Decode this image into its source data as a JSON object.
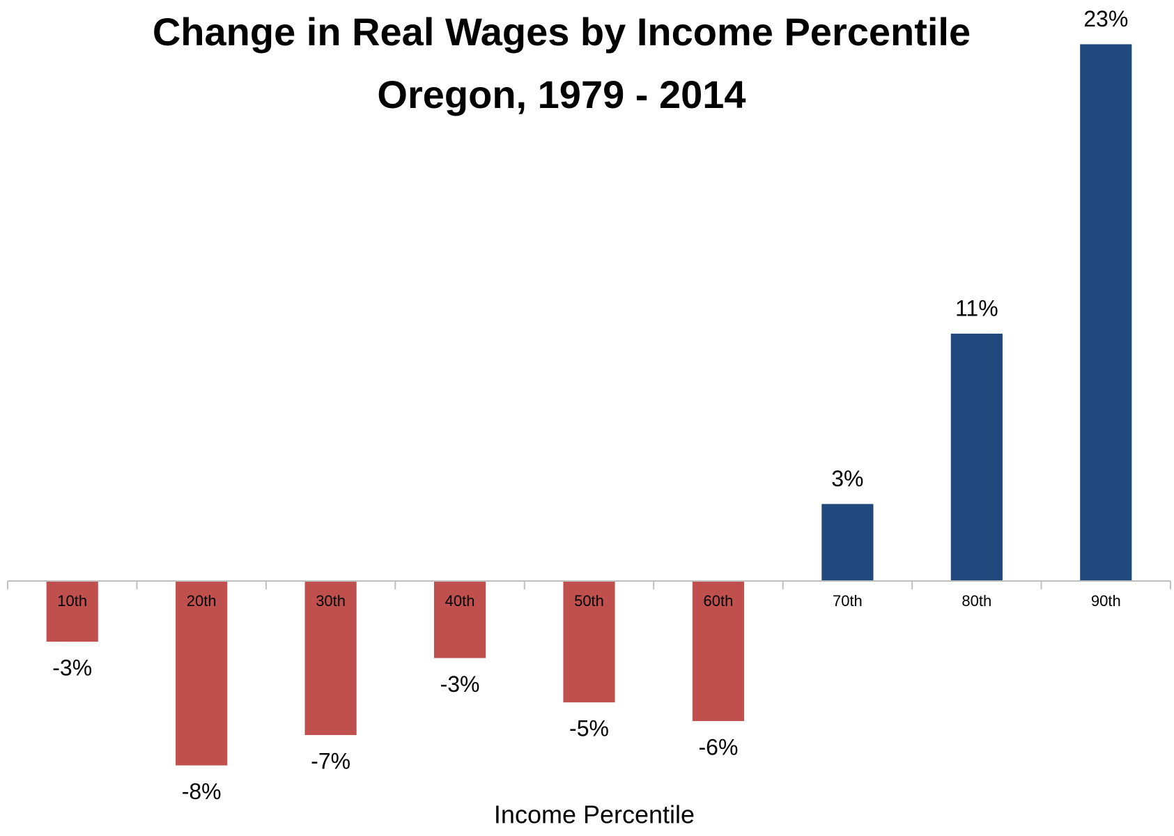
{
  "chart_data": {
    "type": "bar",
    "title": "Change in Real Wages by Income Percentile",
    "subtitle": "Oregon, 1979 - 2014",
    "x_label": "Income Percentile",
    "categories": [
      "10th",
      "20th",
      "30th",
      "40th",
      "50th",
      "60th",
      "70th",
      "80th",
      "90th"
    ],
    "values": [
      -2.6,
      -7.9,
      -6.6,
      -3.3,
      -5.2,
      -6.0,
      3.3,
      10.6,
      23.0
    ],
    "value_labels": [
      "-3%",
      "-8%",
      "-7%",
      "-3%",
      "-5%",
      "-6%",
      "3%",
      "11%",
      "23%"
    ],
    "colors": [
      "#c0504d",
      "#c0504d",
      "#c0504d",
      "#c0504d",
      "#c0504d",
      "#c0504d",
      "#1f497d",
      "#1f497d",
      "#1f497d"
    ],
    "ylim": [
      -10,
      24
    ],
    "grid": false
  }
}
